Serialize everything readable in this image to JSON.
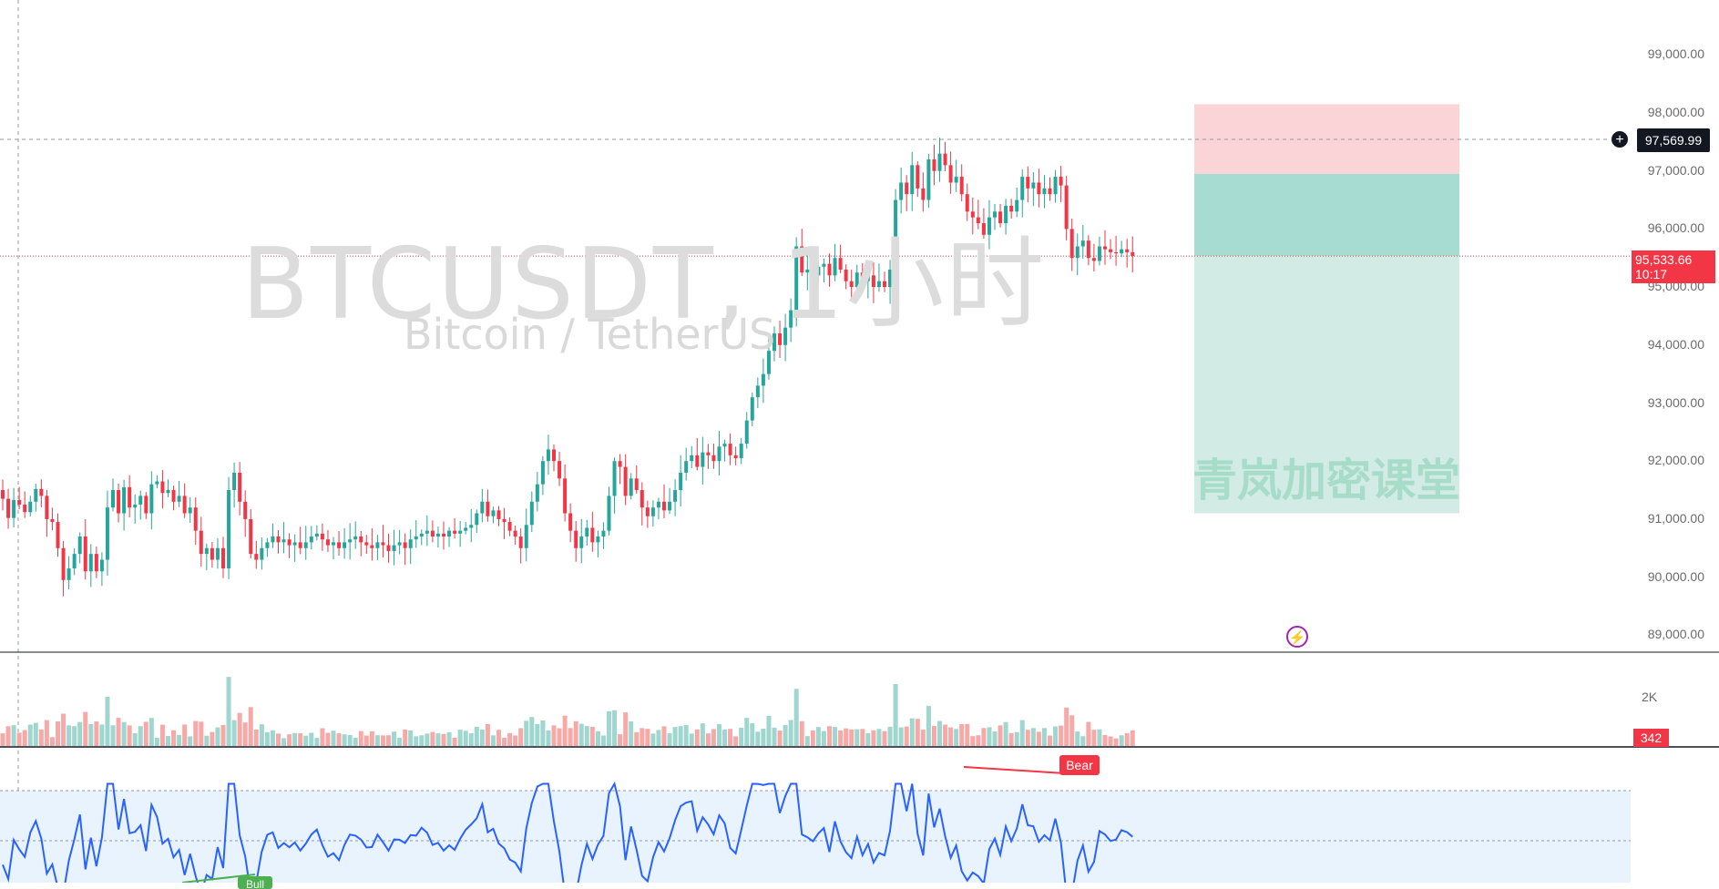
{
  "watermark": {
    "title": "BTCUSDT, 1小时",
    "subtitle": "Bitcoin / TetherUS",
    "zone_label": "青岚加密课堂"
  },
  "price_axis": {
    "ticks": [
      "99,000.00",
      "98,000.00",
      "97,000.00",
      "96,000.00",
      "95,000.00",
      "94,000.00",
      "93,000.00",
      "92,000.00",
      "91,000.00",
      "90,000.00",
      "89,000.00"
    ],
    "crosshair_price": "97,569.99",
    "last_price": "95,533.66",
    "countdown": "10:17"
  },
  "volume_axis": {
    "tick": "2K",
    "last_volume": "342"
  },
  "rsi": {
    "bear_label": "Bear",
    "bull_label": "Bull"
  },
  "colors": {
    "up": "#26a69a",
    "down": "#f23645",
    "stop_zone": "#fbd4d7",
    "target_zone_near": "#a7dcd2",
    "target_zone_far": "#d2ece5",
    "rsi_line": "#2962ff",
    "rsi_band": "#e8f3fd"
  },
  "icons": {
    "add": "plus-circle-icon",
    "alert": "flash-icon"
  },
  "chart_data": {
    "type": "candlestick",
    "symbol": "BTCUSDT",
    "interval": "1小时",
    "ylim": [
      88600,
      100200
    ],
    "position": {
      "type": "short",
      "entry": 96950,
      "stop": 98150,
      "target": 91100
    },
    "closes": [
      91350,
      91020,
      91330,
      91250,
      91120,
      91300,
      91520,
      91400,
      91000,
      90950,
      90500,
      89950,
      90150,
      90400,
      90700,
      90100,
      90400,
      90100,
      90300,
      91200,
      91500,
      91100,
      91550,
      91200,
      91250,
      91400,
      91100,
      91600,
      91650,
      91450,
      91500,
      91300,
      91400,
      91100,
      91200,
      90800,
      90400,
      90500,
      90300,
      90500,
      90150,
      91500,
      91800,
      91300,
      91000,
      90400,
      90300,
      90500,
      90600,
      90700,
      90600,
      90650,
      90550,
      90600,
      90500,
      90600,
      90700,
      90750,
      90650,
      90550,
      90600,
      90500,
      90600,
      90650,
      90700,
      90600,
      90550,
      90500,
      90600,
      90550,
      90450,
      90550,
      90600,
      90500,
      90650,
      90700,
      90750,
      90800,
      90700,
      90750,
      90700,
      90800,
      90750,
      90800,
      90850,
      90900,
      91100,
      91300,
      91050,
      91150,
      91000,
      90950,
      90800,
      90700,
      90500,
      90900,
      91300,
      91600,
      92000,
      92200,
      92000,
      91700,
      91100,
      90800,
      90500,
      90700,
      90850,
      90600,
      90700,
      90800,
      91400,
      92000,
      91900,
      91400,
      91700,
      91500,
      91200,
      91050,
      91200,
      91300,
      91150,
      91300,
      91500,
      91800,
      92000,
      92100,
      91900,
      92150,
      92100,
      92000,
      92250,
      92300,
      92100,
      92050,
      92300,
      92700,
      93100,
      93300,
      93500,
      93900,
      94200,
      94000,
      94300,
      94600,
      95700,
      95250,
      95300,
      95200,
      95350,
      95400,
      95200,
      95500,
      95300,
      95100,
      95000,
      95250,
      95100,
      95200,
      95000,
      95100,
      95000,
      95300,
      96500,
      96800,
      96600,
      97100,
      96700,
      96500,
      97200,
      97000,
      97300,
      97100,
      96800,
      96900,
      96600,
      96300,
      96200,
      96100,
      95900,
      96200,
      96300,
      96100,
      96400,
      96300,
      96500,
      96900,
      96700,
      96800,
      96600,
      96700,
      96600,
      96900,
      96750,
      96000,
      95500,
      95700,
      95800,
      95500,
      95450,
      95700,
      95650,
      95600,
      95580,
      95650,
      95600,
      95533.66
    ],
    "volume_max_label": "2K",
    "last_volume": 342,
    "rsi_band": [
      30,
      70
    ]
  }
}
